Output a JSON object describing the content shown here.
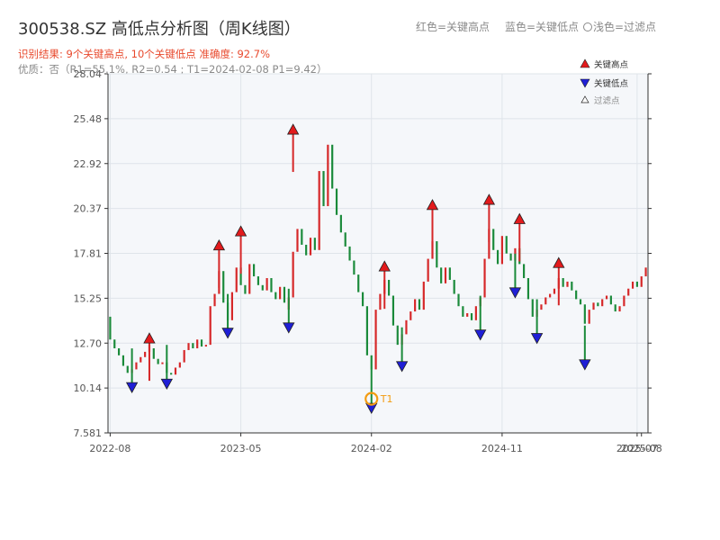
{
  "header": {
    "title": "300538.SZ 高低点分析图（周K线图）",
    "result_line": "识别结果: 9个关键高点, 10个关键低点  准确度: 92.7%",
    "quality_line": "优质：否（R1=55.1%, R2=0.54 ; T1=2024-02-08 P1=9.42）"
  },
  "top_legend": {
    "red": "红色=关键高点",
    "blue": "蓝色=关键低点",
    "light": "浅色=过滤点"
  },
  "colors": {
    "up": "#d62728",
    "down": "#1a8a3a",
    "high_marker": "#e31a1c",
    "low_marker": "#1f1fd6",
    "t1": "#f39c12",
    "grid": "#dfe4ea",
    "plot_bg": "#f5f7fa"
  },
  "chart_legend": {
    "high": "关键高点",
    "low": "关键低点",
    "filtered": "过滤点"
  },
  "chart_data": {
    "type": "candlestick",
    "ylim": [
      7.581,
      28.04
    ],
    "y_ticks": [
      "7.581",
      "10.14",
      "12.70",
      "15.25",
      "17.81",
      "20.37",
      "22.92",
      "25.48",
      "28.04"
    ],
    "x_ticks": [
      "2022-08",
      "2023-05",
      "2024-02",
      "2024-11",
      "2025-07",
      "2025-08"
    ],
    "x_tick_index": [
      0,
      30,
      60,
      90,
      121,
      122
    ],
    "x_count": 124,
    "key_highs": [
      {
        "i": 9,
        "v": 12.6
      },
      {
        "i": 25,
        "v": 17.9
      },
      {
        "i": 30,
        "v": 18.7
      },
      {
        "i": 42,
        "v": 24.5
      },
      {
        "i": 63,
        "v": 16.7
      },
      {
        "i": 74,
        "v": 20.2
      },
      {
        "i": 87,
        "v": 20.5
      },
      {
        "i": 94,
        "v": 19.4
      },
      {
        "i": 103,
        "v": 16.9
      }
    ],
    "key_lows": [
      {
        "i": 5,
        "v": 10.6
      },
      {
        "i": 13,
        "v": 10.8
      },
      {
        "i": 27,
        "v": 13.7
      },
      {
        "i": 41,
        "v": 14.0
      },
      {
        "i": 60,
        "v": 9.42
      },
      {
        "i": 67,
        "v": 11.8
      },
      {
        "i": 85,
        "v": 13.6
      },
      {
        "i": 93,
        "v": 16.0
      },
      {
        "i": 98,
        "v": 13.4
      },
      {
        "i": 109,
        "v": 11.9
      }
    ],
    "t1": {
      "i": 60,
      "v": 9.42,
      "label": "T1"
    },
    "bars": [
      [
        14.2,
        12.9
      ],
      [
        12.9,
        12.4
      ],
      [
        12.4,
        12.0
      ],
      [
        12.0,
        11.4
      ],
      [
        11.4,
        11.0
      ],
      [
        11.0,
        11.2
      ],
      [
        11.2,
        11.6
      ],
      [
        11.6,
        11.9
      ],
      [
        11.9,
        12.2
      ],
      [
        12.2,
        12.6
      ],
      [
        12.4,
        11.8
      ],
      [
        11.8,
        11.5
      ],
      [
        11.5,
        11.6
      ],
      [
        11.6,
        11.0
      ],
      [
        11.0,
        10.9
      ],
      [
        10.9,
        11.3
      ],
      [
        11.3,
        11.6
      ],
      [
        11.6,
        12.3
      ],
      [
        12.3,
        12.7
      ],
      [
        12.7,
        12.4
      ],
      [
        12.4,
        12.9
      ],
      [
        12.9,
        12.5
      ],
      [
        12.5,
        12.6
      ],
      [
        12.6,
        14.8
      ],
      [
        14.8,
        15.5
      ],
      [
        15.5,
        16.8
      ],
      [
        16.8,
        15.0
      ],
      [
        15.0,
        14.0
      ],
      [
        14.0,
        15.6
      ],
      [
        15.6,
        17.0
      ],
      [
        17.0,
        16.0
      ],
      [
        16.0,
        15.5
      ],
      [
        15.5,
        17.2
      ],
      [
        17.2,
        16.5
      ],
      [
        16.5,
        16.0
      ],
      [
        16.0,
        15.7
      ],
      [
        15.7,
        16.4
      ],
      [
        16.4,
        15.6
      ],
      [
        15.6,
        15.2
      ],
      [
        15.2,
        15.9
      ],
      [
        15.9,
        15.0
      ],
      [
        14.6,
        15.3
      ],
      [
        15.3,
        17.9
      ],
      [
        17.9,
        19.2
      ],
      [
        19.2,
        18.3
      ],
      [
        18.3,
        17.7
      ],
      [
        17.7,
        18.7
      ],
      [
        18.7,
        18.0
      ],
      [
        18.0,
        22.5
      ],
      [
        22.5,
        20.5
      ],
      [
        20.5,
        24.0
      ],
      [
        24.0,
        21.5
      ],
      [
        21.5,
        20.0
      ],
      [
        20.0,
        19.0
      ],
      [
        19.0,
        18.2
      ],
      [
        18.2,
        17.4
      ],
      [
        17.4,
        16.6
      ],
      [
        16.6,
        15.6
      ],
      [
        15.6,
        14.8
      ],
      [
        14.8,
        12.0
      ],
      [
        12.0,
        11.2
      ],
      [
        11.2,
        14.6
      ],
      [
        14.6,
        15.5
      ],
      [
        15.5,
        16.3
      ],
      [
        16.3,
        15.4
      ],
      [
        15.4,
        13.7
      ],
      [
        13.7,
        12.6
      ],
      [
        12.6,
        13.2
      ],
      [
        13.2,
        14.0
      ],
      [
        14.0,
        14.5
      ],
      [
        14.5,
        15.2
      ],
      [
        15.2,
        14.6
      ],
      [
        14.6,
        16.2
      ],
      [
        16.2,
        17.5
      ],
      [
        17.5,
        18.5
      ],
      [
        18.5,
        17.0
      ],
      [
        17.0,
        16.1
      ],
      [
        16.1,
        17.0
      ],
      [
        17.0,
        16.3
      ],
      [
        16.3,
        15.5
      ],
      [
        15.5,
        14.8
      ],
      [
        14.8,
        14.2
      ],
      [
        14.2,
        14.4
      ],
      [
        14.4,
        14.0
      ],
      [
        14.0,
        14.8
      ],
      [
        14.8,
        15.3
      ],
      [
        15.3,
        17.5
      ],
      [
        17.5,
        19.2
      ],
      [
        19.2,
        18.0
      ],
      [
        18.0,
        17.2
      ],
      [
        17.2,
        18.8
      ],
      [
        18.8,
        17.8
      ],
      [
        17.8,
        17.4
      ],
      [
        17.4,
        18.1
      ],
      [
        18.1,
        17.2
      ],
      [
        17.2,
        16.4
      ],
      [
        16.4,
        15.2
      ],
      [
        15.2,
        14.2
      ],
      [
        14.2,
        14.6
      ],
      [
        14.6,
        14.9
      ],
      [
        14.9,
        15.3
      ],
      [
        15.3,
        15.5
      ],
      [
        15.5,
        15.8
      ],
      [
        15.8,
        16.4
      ],
      [
        16.4,
        15.9
      ],
      [
        15.9,
        16.2
      ],
      [
        16.2,
        15.7
      ],
      [
        15.7,
        15.2
      ],
      [
        15.2,
        14.9
      ],
      [
        14.9,
        13.8
      ],
      [
        13.8,
        14.6
      ],
      [
        14.6,
        15.0
      ],
      [
        15.0,
        14.8
      ],
      [
        14.8,
        15.2
      ],
      [
        15.2,
        15.4
      ],
      [
        15.4,
        14.9
      ],
      [
        14.9,
        14.5
      ],
      [
        14.5,
        14.8
      ],
      [
        14.8,
        15.4
      ],
      [
        15.4,
        15.8
      ],
      [
        15.8,
        16.2
      ],
      [
        16.2,
        15.9
      ],
      [
        15.9,
        16.5
      ],
      [
        16.5,
        17.0
      ]
    ]
  }
}
